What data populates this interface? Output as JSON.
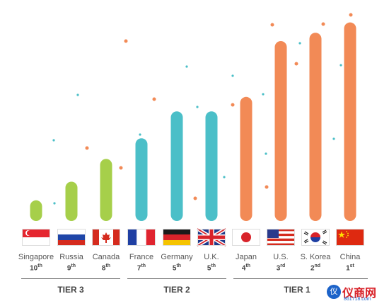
{
  "chart_data": {
    "type": "bar",
    "title": "",
    "xlabel": "",
    "ylabel": "",
    "categories": [
      "Singapore",
      "Russia",
      "Canada",
      "France",
      "Germany",
      "U.K.",
      "Japan",
      "U.S.",
      "S. Korea",
      "China"
    ],
    "ranks": [
      {
        "num": "10",
        "suffix": "th"
      },
      {
        "num": "9",
        "suffix": "th"
      },
      {
        "num": "8",
        "suffix": "th"
      },
      {
        "num": "7",
        "suffix": "th"
      },
      {
        "num": "5",
        "suffix": "th"
      },
      {
        "num": "5",
        "suffix": "th"
      },
      {
        "num": "4",
        "suffix": "th"
      },
      {
        "num": "3",
        "suffix": "rd"
      },
      {
        "num": "2",
        "suffix": "nd"
      },
      {
        "num": "1",
        "suffix": "st"
      }
    ],
    "values": [
      10,
      19,
      30,
      40,
      53,
      53,
      60,
      87,
      91,
      96
    ],
    "ylim": [
      0,
      100
    ],
    "grid": false,
    "tiers": [
      {
        "label": "TIER 3",
        "members": [
          "Singapore",
          "Russia",
          "Canada"
        ],
        "color": "#a6cf4a"
      },
      {
        "label": "TIER 2",
        "members": [
          "France",
          "Germany",
          "U.K."
        ],
        "color": "#4bbfc8"
      },
      {
        "label": "TIER 1",
        "members": [
          "Japan",
          "U.S.",
          "S. Korea",
          "China"
        ],
        "color": "#f28a56"
      }
    ],
    "flags": [
      "singapore-flag",
      "russia-flag",
      "canada-flag",
      "france-flag",
      "germany-flag",
      "uk-flag",
      "japan-flag",
      "us-flag",
      "south-korea-flag",
      "china-flag"
    ]
  },
  "watermark": {
    "brand": "仪商网",
    "url": "861718.com"
  }
}
